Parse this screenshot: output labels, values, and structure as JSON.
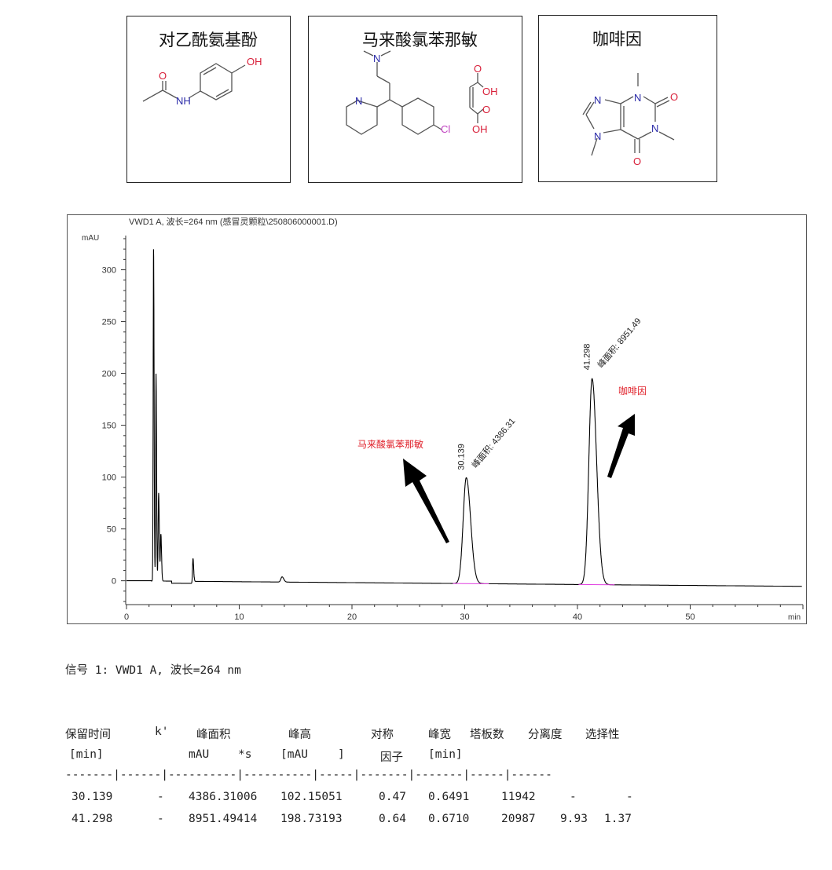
{
  "compounds": [
    {
      "name": "对乙酰氨基酚",
      "atoms": {
        "O": "O",
        "NH": "NH",
        "OH": "OH"
      }
    },
    {
      "name": "马来酸氯苯那敏",
      "atoms": {
        "N_amine": "N",
        "N_pyr": "N",
        "Cl": "Cl",
        "O1": "O",
        "OH1": "OH",
        "O2": "O",
        "OH2": "OH"
      }
    },
    {
      "name": "咖啡因",
      "atoms": {
        "N1": "N",
        "N3": "N",
        "N7": "N",
        "N9": "N",
        "O2": "O",
        "O6": "O"
      }
    }
  ],
  "colors": {
    "oxygen": "#d8203a",
    "nitrogen": "#2a2aa8",
    "chlorine": "#c040c0",
    "annotation": "#e0202a",
    "trace": "#000000",
    "baseline": "#e040e0"
  },
  "chart_data": {
    "type": "line",
    "title": "VWD1 A, 波长=264 nm (感冒灵颗粒\\250806000001.D)",
    "ylabel": "mAU",
    "xlabel": "min",
    "xlim": [
      0,
      60
    ],
    "ylim": [
      -23,
      333
    ],
    "xticks": [
      0,
      10,
      20,
      30,
      40,
      50
    ],
    "yticks": [
      0,
      50,
      100,
      150,
      200,
      250,
      300
    ],
    "peaks": [
      {
        "rt": 2.4,
        "height": 320,
        "width": 0.08
      },
      {
        "rt": 2.62,
        "height": 200,
        "width": 0.08
      },
      {
        "rt": 2.85,
        "height": 85,
        "width": 0.1
      },
      {
        "rt": 3.05,
        "height": 45,
        "width": 0.1
      },
      {
        "rt": 5.9,
        "height": 24,
        "width": 0.1
      },
      {
        "rt": 13.8,
        "height": 5,
        "width": 0.25
      },
      {
        "rt": 30.139,
        "height": 102.15,
        "width": 0.6491,
        "label_rt": "30.139",
        "label_area": "峰面积: 4386.31"
      },
      {
        "rt": 41.298,
        "height": 198.73,
        "width": 0.671,
        "label_rt": "41.298",
        "label_area": "峰面积: 8951.49"
      }
    ],
    "annotations": [
      {
        "text": "马来酸氯苯那敏",
        "target_rt": 30.139
      },
      {
        "text": "咖啡因",
        "target_rt": 41.298
      }
    ]
  },
  "signal_line": "信号 1: VWD1 A, 波长=264 nm",
  "table": {
    "header1": [
      "保留时间",
      "k'",
      "峰面积",
      "峰高",
      "对称",
      "峰宽",
      "塔板数",
      "分离度",
      "选择性"
    ],
    "header2": [
      "[min]",
      "mAU",
      "*s",
      "[mAU",
      "]",
      "因子",
      "[min]"
    ],
    "separator": "-------|------|----------|----------|-----|-------|-------|-----|------",
    "rows": [
      [
        "30.139",
        "-",
        "4386.31006",
        "102.15051",
        "0.47",
        "0.6491",
        "11942",
        "-",
        "-"
      ],
      [
        "41.298",
        "-",
        "8951.49414",
        "198.73193",
        "0.64",
        "0.6710",
        "20987",
        "9.93",
        "1.37"
      ]
    ]
  }
}
